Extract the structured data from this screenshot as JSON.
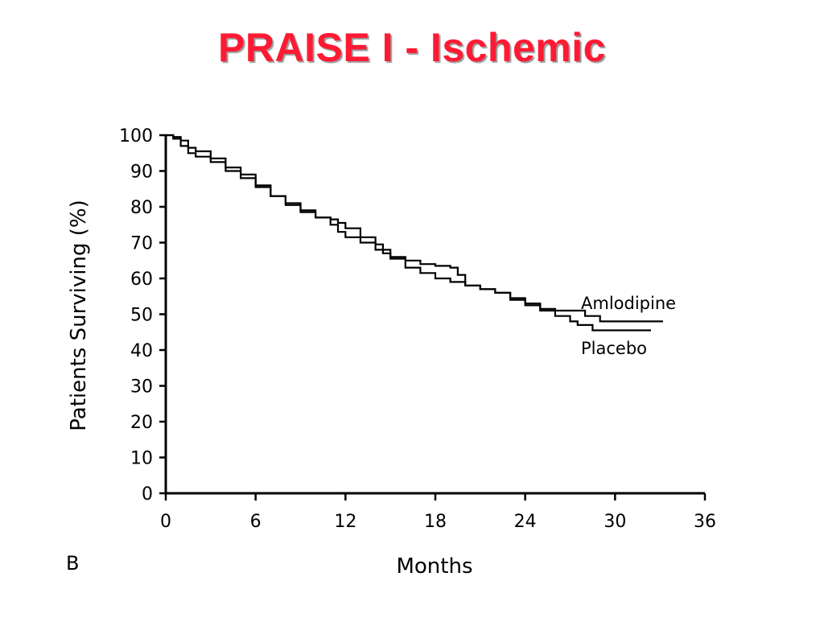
{
  "slide": {
    "title": "PRAISE I - Ischemic",
    "panel_label": "B"
  },
  "colors": {
    "title": "#ff1a33",
    "line": "#000000"
  },
  "chart_data": {
    "type": "line",
    "title": "",
    "xlabel": "Months",
    "ylabel": "Patients Surviving (%)",
    "xlim": [
      0,
      36
    ],
    "ylim": [
      0,
      100
    ],
    "xticks": [
      0,
      6,
      12,
      18,
      24,
      30,
      36
    ],
    "yticks": [
      0,
      10,
      20,
      30,
      40,
      50,
      60,
      70,
      80,
      90,
      100
    ],
    "grid": false,
    "legend": "inline labels at right end of curves",
    "series": [
      {
        "name": "Amlodipine",
        "x": [
          0,
          0.5,
          1.0,
          1.5,
          2.0,
          3.0,
          4.0,
          5.0,
          6.0,
          7.0,
          8.0,
          9.0,
          10.0,
          11.0,
          11.5,
          12.0,
          13.0,
          14.0,
          14.5,
          15.0,
          16.0,
          17.0,
          18.0,
          19.0,
          19.5,
          20.0,
          21.0,
          22.0,
          23.0,
          24.0,
          25.0,
          26.0,
          27.0,
          27.5,
          28.0,
          29.0,
          30.0,
          31.0,
          32.0,
          33.0,
          33.2
        ],
        "y": [
          100,
          99.5,
          98.5,
          96.5,
          95.5,
          93.5,
          91.0,
          89.0,
          86.0,
          83.0,
          80.5,
          78.5,
          77.0,
          76.5,
          75.5,
          74.0,
          71.5,
          69.5,
          67.0,
          66.0,
          65.0,
          64.0,
          63.5,
          63.0,
          61.0,
          58.0,
          57.0,
          56.0,
          54.5,
          53.0,
          51.5,
          51.0,
          51.0,
          51.0,
          49.5,
          48.0,
          48.0,
          48.0,
          48.0,
          48.0,
          48.0
        ]
      },
      {
        "name": "Placebo",
        "x": [
          0,
          0.5,
          1.0,
          1.5,
          2.0,
          3.0,
          4.0,
          5.0,
          6.0,
          7.0,
          8.0,
          9.0,
          10.0,
          11.0,
          11.5,
          12.0,
          13.0,
          14.0,
          15.0,
          16.0,
          17.0,
          18.0,
          19.0,
          20.0,
          21.0,
          22.0,
          23.0,
          24.0,
          25.0,
          26.0,
          27.0,
          27.5,
          28.0,
          28.5,
          29.0,
          30.0,
          31.0,
          32.0,
          32.4
        ],
        "y": [
          100,
          99.0,
          97.0,
          95.0,
          94.0,
          92.5,
          90.0,
          88.0,
          85.5,
          83.0,
          81.0,
          79.0,
          77.0,
          75.0,
          73.0,
          71.5,
          70.0,
          68.0,
          65.5,
          63.0,
          61.5,
          60.0,
          59.0,
          58.0,
          57.0,
          56.0,
          54.0,
          52.5,
          51.0,
          49.5,
          48.0,
          47.0,
          47.0,
          45.5,
          45.5,
          45.5,
          45.5,
          45.5,
          45.5
        ]
      }
    ]
  }
}
